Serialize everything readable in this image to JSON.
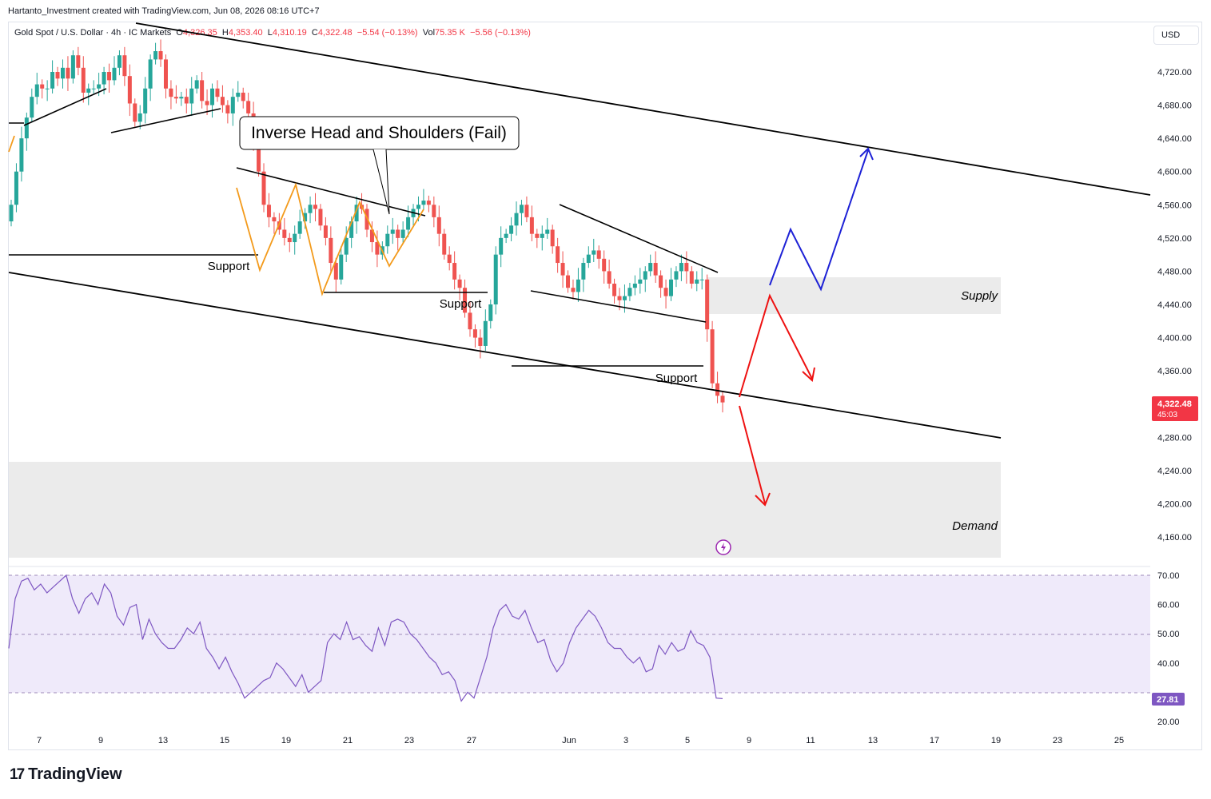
{
  "header": {
    "credit": "Hartanto_Investment created with TradingView.com, Jun 08, 2026 08:16 UTC+7",
    "symbol": "Gold Spot / U.S. Dollar · 4h · IC Markets",
    "o_label": "O",
    "o_value": "4,326.35",
    "h_label": "H",
    "h_value": "4,353.40",
    "l_label": "L",
    "l_value": "4,310.19",
    "c_label": "C",
    "c_value": "4,322.48",
    "change": "−5.54 (−0.13%)",
    "vol_label": "Vol",
    "vol_value": "75.35 K",
    "vol_change": "−5.56 (−0.13%)"
  },
  "currency_button": "USD",
  "brand": {
    "logo": "17",
    "name": "TradingView"
  },
  "colors": {
    "up": "#26a69a",
    "down": "#ef5350",
    "rsi": "#7e57c2",
    "zone": "#ebebeb",
    "rsi_band": "#efeafa",
    "bull_path": "#1e22d6",
    "bear_path": "#ee1111",
    "pattern": "#f39a1b"
  },
  "chart_data": {
    "type": "candlestick",
    "price_axis": {
      "ticks": [
        "4,720.00",
        "4,680.00",
        "4,640.00",
        "4,600.00",
        "4,560.00",
        "4,520.00",
        "4,480.00",
        "4,440.00",
        "4,400.00",
        "4,360.00",
        "4,280.00",
        "4,240.00",
        "4,200.00",
        "4,160.00"
      ],
      "last_price": "4,322.48",
      "countdown": "45:03"
    },
    "time_axis": {
      "ticks": [
        "7",
        "9",
        "13",
        "15",
        "19",
        "21",
        "23",
        "27",
        "Jun",
        "3",
        "5",
        "9",
        "11",
        "13",
        "17",
        "19",
        "23",
        "25"
      ]
    },
    "annotations": {
      "callout": "Inverse Head and Shoulders (Fail)",
      "support_1": "Support",
      "support_2": "Support",
      "support_3": "Support",
      "supply": "Supply",
      "demand": "Demand"
    },
    "close_series": [
      4560,
      4600,
      4640,
      4665,
      4690,
      4705,
      4700,
      4700,
      4720,
      4712,
      4725,
      4712,
      4740,
      4725,
      4695,
      4700,
      4700,
      4705,
      4720,
      4710,
      4725,
      4740,
      4715,
      4682,
      4660,
      4670,
      4700,
      4735,
      4745,
      4735,
      4700,
      4690,
      4688,
      4690,
      4682,
      4700,
      4710,
      4685,
      4680,
      4700,
      4690,
      4680,
      4670,
      4690,
      4695,
      4685,
      4670,
      4640,
      4600,
      4560,
      4545,
      4540,
      4530,
      4520,
      4515,
      4525,
      4540,
      4550,
      4560,
      4555,
      4535,
      4520,
      4490,
      4470,
      4500,
      4520,
      4540,
      4560,
      4555,
      4530,
      4515,
      4500,
      4510,
      4525,
      4530,
      4520,
      4530,
      4545,
      4555,
      4560,
      4565,
      4560,
      4545,
      4525,
      4500,
      4490,
      4470,
      4460,
      4430,
      4410,
      4400,
      4390,
      4420,
      4440,
      4500,
      4520,
      4525,
      4535,
      4550,
      4560,
      4545,
      4525,
      4520,
      4525,
      4530,
      4510,
      4490,
      4475,
      4460,
      4455,
      4470,
      4490,
      4500,
      4505,
      4495,
      4480,
      4465,
      4450,
      4445,
      4450,
      4460,
      4465,
      4470,
      4480,
      4490,
      4475,
      4460,
      4450,
      4470,
      4480,
      4490,
      4480,
      4465,
      4470,
      4470,
      4410,
      4345,
      4330,
      4322
    ],
    "rsi": {
      "ticks": [
        "70.00",
        "60.00",
        "50.00",
        "40.00",
        "20.00"
      ],
      "last": "27.81",
      "upper": 70,
      "mid": 50,
      "lower": 30
    },
    "rsi_values": [
      45,
      62,
      68,
      69,
      65,
      67,
      64,
      66,
      68,
      70,
      62,
      57,
      62,
      64,
      60,
      67,
      64,
      56,
      53,
      59,
      60,
      48,
      55,
      50,
      47,
      45,
      45,
      48,
      52,
      50,
      54,
      45,
      42,
      38,
      42,
      37,
      33,
      28,
      30,
      32,
      34,
      35,
      40,
      38,
      35,
      32,
      36,
      30,
      32,
      34,
      47,
      50,
      48,
      54,
      48,
      49,
      46,
      44,
      52,
      46,
      54,
      55,
      54,
      50,
      48,
      45,
      42,
      40,
      36,
      37,
      34,
      27,
      30,
      28,
      35,
      42,
      52,
      58,
      60,
      56,
      55,
      58,
      52,
      47,
      48,
      41,
      37,
      40,
      47,
      52,
      55,
      58,
      56,
      52,
      47,
      45,
      45,
      42,
      40,
      42,
      37,
      38,
      46,
      43,
      47,
      44,
      45,
      51,
      47,
      46,
      42,
      28,
      27.81
    ],
    "zones": {
      "supply": [
        4430,
        4475
      ],
      "demand": [
        4115,
        4255
      ]
    }
  }
}
